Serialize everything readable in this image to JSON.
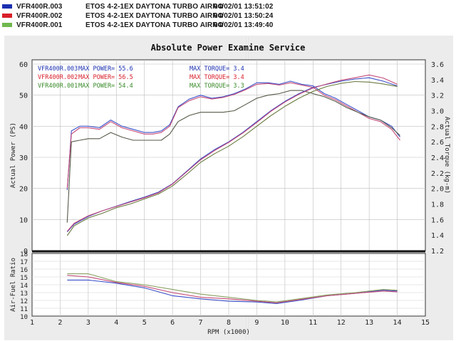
{
  "legend": [
    {
      "run": "VFR400R.003",
      "config": "ETOS 4-2-1EX DAYTONA TURBO AIRRO",
      "timestamp": "04/02/01 13:51:02",
      "color": "#1a2fb0"
    },
    {
      "run": "VFR400R.002",
      "config": "ETOS 4-2-1EX DAYTONA TURBO AIRRO",
      "timestamp": "04/02/01 13:50:24",
      "color": "#d81f2a"
    },
    {
      "run": "VFR400R.001",
      "config": "ETOS 4-2-1EX DAYTONA TURBO AIRRO",
      "timestamp": "04/02/01 13:49:40",
      "color": "#6fb84e"
    }
  ],
  "title": "Absolute Power Examine Service",
  "chart_data": [
    {
      "type": "line",
      "xlabel": "RPM (x1000)",
      "ylabel": "Actual Power (PS)",
      "y2label": "Actual Torque (kg-m)",
      "xlim": [
        1,
        15
      ],
      "ylim": [
        0,
        60
      ],
      "y2lim": [
        1.2,
        3.6
      ],
      "xticks": [
        "1",
        "2",
        "3",
        "4",
        "5",
        "6",
        "7",
        "8",
        "9",
        "10",
        "11",
        "12",
        "13",
        "14",
        "15"
      ],
      "yticks": [
        "0",
        "10",
        "20",
        "30",
        "40",
        "50",
        "60"
      ],
      "y2ticks": [
        "1.2",
        "1.4",
        "1.6",
        "1.8",
        "2.0",
        "2.2",
        "2.4",
        "2.6",
        "2.8",
        "3.0",
        "3.2",
        "3.4",
        "3.6"
      ],
      "grid": true,
      "annotations": [
        {
          "label": "VFR400R.003",
          "power": "MAX POWER= 55.6",
          "torque": "MAX TORQUE= 3.4",
          "color": "#1a2fb0"
        },
        {
          "label": "VFR400R.002",
          "power": "MAX POWER= 56.5",
          "torque": "MAX TORQUE= 3.4",
          "color": "#d81f2a"
        },
        {
          "label": "VFR400R.001",
          "power": "MAX POWER= 54.4",
          "torque": "MAX TORQUE= 3.3",
          "color": "#3a8a2a"
        }
      ],
      "series": [
        {
          "name": "VFR400R.003",
          "kind": "torque",
          "color": "#3a4fc8",
          "x": [
            2.25,
            2.4,
            2.7,
            3.0,
            3.4,
            3.8,
            4.2,
            4.6,
            5.0,
            5.3,
            5.6,
            5.9,
            6.2,
            6.6,
            7.0,
            7.4,
            7.8,
            8.2,
            8.6,
            9.0,
            9.4,
            9.8,
            10.2,
            10.6,
            11.0,
            11.4,
            11.8,
            12.2,
            12.6,
            13.0,
            13.4,
            13.8,
            14.1
          ],
          "y": [
            1.98,
            2.74,
            2.8,
            2.8,
            2.78,
            2.88,
            2.8,
            2.76,
            2.72,
            2.72,
            2.74,
            2.82,
            3.05,
            3.15,
            3.2,
            3.16,
            3.18,
            3.22,
            3.28,
            3.36,
            3.36,
            3.34,
            3.38,
            3.34,
            3.32,
            3.22,
            3.16,
            3.08,
            3.0,
            2.92,
            2.88,
            2.8,
            2.66
          ]
        },
        {
          "name": "VFR400R.002",
          "kind": "torque",
          "color": "#c44a78",
          "x": [
            2.25,
            2.4,
            2.7,
            3.0,
            3.4,
            3.8,
            4.2,
            4.6,
            5.0,
            5.3,
            5.6,
            5.9,
            6.2,
            6.6,
            7.0,
            7.4,
            7.8,
            8.2,
            8.6,
            9.0,
            9.4,
            9.8,
            10.2,
            10.6,
            11.0,
            11.4,
            11.8,
            12.2,
            12.6,
            13.0,
            13.4,
            13.8,
            14.1
          ],
          "y": [
            2.0,
            2.7,
            2.78,
            2.78,
            2.76,
            2.86,
            2.78,
            2.74,
            2.7,
            2.7,
            2.72,
            2.8,
            3.04,
            3.13,
            3.18,
            3.15,
            3.17,
            3.21,
            3.27,
            3.34,
            3.35,
            3.33,
            3.36,
            3.33,
            3.3,
            3.2,
            3.14,
            3.06,
            2.98,
            2.9,
            2.86,
            2.76,
            2.62
          ]
        },
        {
          "name": "VFR400R.001",
          "kind": "torque",
          "color": "#555a48",
          "x": [
            2.25,
            2.4,
            2.7,
            3.0,
            3.4,
            3.8,
            4.2,
            4.6,
            5.0,
            5.3,
            5.6,
            5.9,
            6.2,
            6.6,
            7.0,
            7.4,
            7.8,
            8.2,
            8.6,
            9.0,
            9.4,
            9.8,
            10.2,
            10.6,
            11.0,
            11.4,
            11.8,
            12.2,
            12.6,
            13.0,
            13.4,
            13.8,
            14.1
          ],
          "y": [
            1.56,
            2.6,
            2.62,
            2.64,
            2.64,
            2.72,
            2.66,
            2.62,
            2.62,
            2.62,
            2.62,
            2.7,
            2.86,
            2.94,
            2.98,
            2.98,
            2.98,
            3.0,
            3.08,
            3.16,
            3.2,
            3.22,
            3.26,
            3.26,
            3.22,
            3.18,
            3.12,
            3.04,
            2.98,
            2.92,
            2.88,
            2.78,
            2.68
          ]
        },
        {
          "name": "VFR400R.003",
          "kind": "power",
          "color": "#3a4fc8",
          "x": [
            2.25,
            2.5,
            3.0,
            3.5,
            4.0,
            4.5,
            5.0,
            5.5,
            6.0,
            6.5,
            7.0,
            7.5,
            8.0,
            8.5,
            9.0,
            9.5,
            10.0,
            10.5,
            11.0,
            11.5,
            12.0,
            12.5,
            13.0,
            13.5,
            14.0
          ],
          "y": [
            6.0,
            8.5,
            11.0,
            12.8,
            14.3,
            15.8,
            17.2,
            18.8,
            21.5,
            25.5,
            29.5,
            32.5,
            35.0,
            38.0,
            41.5,
            45.0,
            48.0,
            50.5,
            52.5,
            53.5,
            54.5,
            55.2,
            55.6,
            54.5,
            53.0
          ]
        },
        {
          "name": "VFR400R.002",
          "kind": "power",
          "color": "#c44a78",
          "x": [
            2.25,
            2.5,
            3.0,
            3.5,
            4.0,
            4.5,
            5.0,
            5.5,
            6.0,
            6.5,
            7.0,
            7.5,
            8.0,
            8.5,
            9.0,
            9.5,
            10.0,
            10.5,
            11.0,
            11.5,
            12.0,
            12.5,
            13.0,
            13.5,
            14.0
          ],
          "y": [
            6.2,
            8.8,
            11.2,
            12.8,
            14.2,
            15.6,
            17.0,
            18.6,
            21.4,
            25.3,
            29.2,
            32.2,
            34.8,
            37.8,
            41.2,
            44.8,
            47.8,
            50.3,
            52.3,
            53.6,
            54.8,
            55.6,
            56.5,
            55.5,
            53.5
          ]
        },
        {
          "name": "VFR400R.001",
          "kind": "power",
          "color": "#6a7a40",
          "x": [
            2.25,
            2.5,
            3.0,
            3.5,
            4.0,
            4.5,
            5.0,
            5.5,
            6.0,
            6.5,
            7.0,
            7.5,
            8.0,
            8.5,
            9.0,
            9.5,
            10.0,
            10.5,
            11.0,
            11.5,
            12.0,
            12.5,
            13.0,
            13.5,
            14.0
          ],
          "y": [
            4.8,
            8.0,
            10.5,
            12.0,
            13.8,
            15.0,
            16.6,
            18.2,
            20.8,
            24.5,
            28.4,
            31.2,
            33.6,
            36.6,
            40.0,
            43.4,
            46.4,
            49.0,
            51.2,
            52.8,
            53.8,
            54.4,
            54.2,
            53.6,
            52.8
          ]
        }
      ]
    },
    {
      "type": "line",
      "xlabel": "RPM (x1000)",
      "ylabel": "Air-Fuel Ratio",
      "xlim": [
        1,
        15
      ],
      "ylim": [
        10,
        18
      ],
      "yticks": [
        "10",
        "11",
        "12",
        "13",
        "14",
        "15",
        "16",
        "17",
        "18"
      ],
      "grid": true,
      "series": [
        {
          "name": "VFR400R.003",
          "color": "#3a4fc8",
          "x": [
            2.25,
            3.0,
            4.0,
            5.0,
            6.0,
            7.0,
            8.0,
            9.0,
            9.7,
            10.5,
            11.5,
            12.5,
            13.5,
            14.0
          ],
          "y": [
            14.6,
            14.6,
            14.2,
            13.6,
            12.6,
            12.2,
            11.9,
            11.8,
            11.6,
            12.0,
            12.6,
            12.9,
            13.3,
            13.2
          ]
        },
        {
          "name": "VFR400R.002",
          "color": "#c44a78",
          "x": [
            2.25,
            3.0,
            4.0,
            5.0,
            6.0,
            7.0,
            8.0,
            9.0,
            9.7,
            10.5,
            11.5,
            12.5,
            13.5,
            14.0
          ],
          "y": [
            15.2,
            15.0,
            14.3,
            13.8,
            13.0,
            12.4,
            12.2,
            11.9,
            11.7,
            12.1,
            12.6,
            12.9,
            13.2,
            13.1
          ]
        },
        {
          "name": "VFR400R.001",
          "color": "#8aa060",
          "x": [
            2.25,
            3.0,
            4.0,
            5.0,
            6.0,
            7.0,
            8.0,
            9.0,
            9.7,
            10.5,
            11.5,
            12.5,
            13.5,
            14.0
          ],
          "y": [
            15.4,
            15.4,
            14.4,
            14.0,
            13.4,
            12.8,
            12.4,
            12.0,
            11.8,
            12.2,
            12.7,
            13.0,
            13.4,
            13.3
          ]
        }
      ]
    }
  ]
}
